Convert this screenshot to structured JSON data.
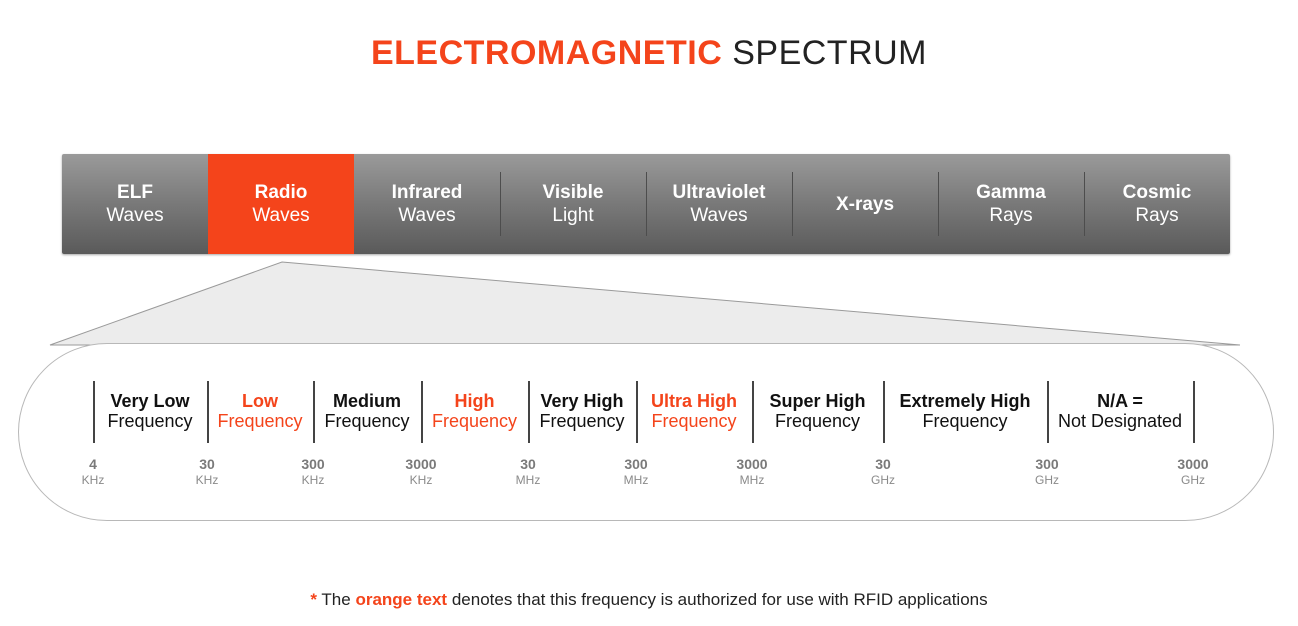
{
  "title": {
    "bold": "ELECTROMAGNETIC",
    "rest": "SPECTRUM"
  },
  "spectrum": [
    {
      "line1": "ELF",
      "line2": "Waves",
      "active": false
    },
    {
      "line1": "Radio",
      "line2": "Waves",
      "active": true
    },
    {
      "line1": "Infrared",
      "line2": "Waves",
      "active": false
    },
    {
      "line1": "Visible",
      "line2": "Light",
      "active": false
    },
    {
      "line1": "Ultraviolet",
      "line2": "Waves",
      "active": false
    },
    {
      "line1": "X-rays",
      "line2": "",
      "active": false
    },
    {
      "line1": "Gamma",
      "line2": "Rays",
      "active": false
    },
    {
      "line1": "Cosmic",
      "line2": "Rays",
      "active": false
    }
  ],
  "bands": [
    {
      "line1": "Very Low",
      "line2": "Frequency",
      "rfid": false
    },
    {
      "line1": "Low",
      "line2": "Frequency",
      "rfid": true
    },
    {
      "line1": "Medium",
      "line2": "Frequency",
      "rfid": false
    },
    {
      "line1": "High",
      "line2": "Frequency",
      "rfid": true
    },
    {
      "line1": "Very High",
      "line2": "Frequency",
      "rfid": false
    },
    {
      "line1": "Ultra High",
      "line2": "Frequency",
      "rfid": true
    },
    {
      "line1": "Super High",
      "line2": "Frequency",
      "rfid": false
    },
    {
      "line1": "Extremely High",
      "line2": "Frequency",
      "rfid": false
    },
    {
      "line1": "N/A =",
      "line2": "Not Designated",
      "rfid": false
    }
  ],
  "frequencies": [
    {
      "value": "4",
      "unit": "KHz"
    },
    {
      "value": "30",
      "unit": "KHz"
    },
    {
      "value": "300",
      "unit": "KHz"
    },
    {
      "value": "3000",
      "unit": "KHz"
    },
    {
      "value": "30",
      "unit": "MHz"
    },
    {
      "value": "300",
      "unit": "MHz"
    },
    {
      "value": "3000",
      "unit": "MHz"
    },
    {
      "value": "30",
      "unit": "GHz"
    },
    {
      "value": "300",
      "unit": "GHz"
    },
    {
      "value": "3000",
      "unit": "GHz"
    }
  ],
  "footnote": {
    "star": "*",
    "before": "The",
    "highlight": "orange text",
    "after": "denotes that this frequency is authorized for use with RFID applications"
  },
  "colors": {
    "accent": "#f4441b",
    "bar_top": "#9a9a9a",
    "bar_bottom": "#5a5a5a"
  }
}
